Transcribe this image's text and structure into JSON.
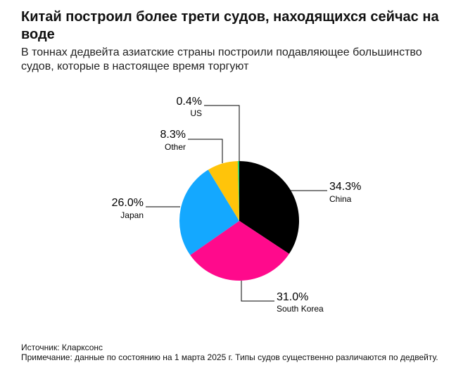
{
  "header": {
    "title": "Китай построил более трети судов, находящихся сейчас на воде",
    "subtitle": "В тоннах дедвейта азиатские страны построили подавляющее большинство судов, которые в настоящее время торгуют"
  },
  "footer": {
    "source": "Источник: Кларксонс",
    "note": "Примечание: данные по состоянию на 1 марта 2025 г. Типы судов существенно различаются по дедвейту."
  },
  "chart_data": {
    "type": "pie",
    "title": "Китай построил более трети судов, находящихся сейчас на воде",
    "subtitle": "В тоннах дедвейта азиатские страны построили подавляющее большинство судов, которые в настоящее время торгуют",
    "unit": "%",
    "slices": [
      {
        "label": "China",
        "value": 34.3,
        "display": "34.3%",
        "color": "#000000"
      },
      {
        "label": "South Korea",
        "value": 31.0,
        "display": "31.0%",
        "color": "#ff0a8c"
      },
      {
        "label": "Japan",
        "value": 26.0,
        "display": "26.0%",
        "color": "#14a8ff"
      },
      {
        "label": "Other",
        "value": 8.3,
        "display": "8.3%",
        "color": "#ffc40a"
      },
      {
        "label": "US",
        "value": 0.4,
        "display": "0.4%",
        "color": "#2bd06a"
      }
    ]
  }
}
